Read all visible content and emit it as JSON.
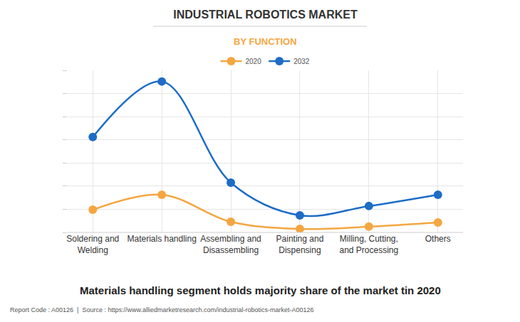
{
  "chart_data": {
    "type": "line",
    "title": "INDUSTRIAL ROBOTICS MARKET",
    "subtitle": "BY FUNCTION",
    "categories": [
      "Soldering and Welding",
      "Materials handling",
      "Assembling and Disassembling",
      "Painting and Dispensing",
      "Milling, Cutting, and Processing",
      "Others"
    ],
    "series": [
      {
        "name": "2020",
        "color": "#f4a641",
        "values": [
          0.98,
          1.63,
          0.46,
          0.15,
          0.25,
          0.43
        ]
      },
      {
        "name": "2032",
        "color": "#1d6cc6",
        "values": [
          4.12,
          6.52,
          2.15,
          0.74,
          1.14,
          1.63
        ]
      }
    ],
    "ylim": [
      0,
      7
    ],
    "yticks": [
      0,
      1,
      2,
      3,
      4,
      5,
      6,
      7
    ],
    "grid": true,
    "legend": "top",
    "tick_labels": "x",
    "marker": "circle",
    "line_style": "smooth",
    "annotations": [
      "Materials handling segment holds majority share of the market tin 2020",
      "Report Code : A00126  |  Source : https://www.alliedmarketresearch.com/industrial-robotics-market-A00126"
    ]
  }
}
